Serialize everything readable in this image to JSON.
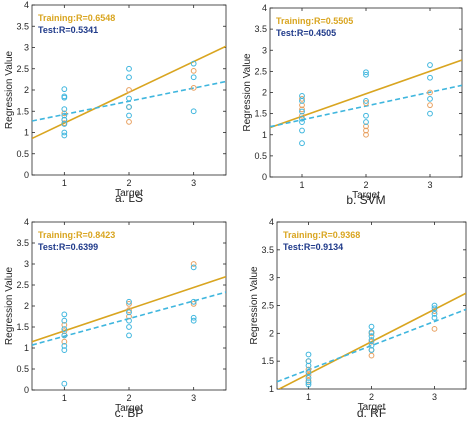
{
  "colors": {
    "training": "#D9A520",
    "test": "#3FB6DE",
    "training_label": "#D9A520",
    "test_label": "#1F3A8A",
    "point_train": "#E8A060",
    "point_test": "#3FB6DE"
  },
  "chart_data": [
    {
      "type": "scatter",
      "caption": "a. LS",
      "xlabel": "Target",
      "ylabel": "Regression Value",
      "xlim": [
        0.5,
        3.5
      ],
      "ylim": [
        0,
        4
      ],
      "xticks": [
        "1",
        "2",
        "3"
      ],
      "yticks": [
        "0",
        "0.5",
        "1",
        "1.5",
        "2",
        "2.5",
        "3",
        "3.5",
        "4"
      ],
      "grid": false,
      "legend_position": "top-left",
      "training_label": "Training:R=0.6548",
      "test_label": "Test:R=0.5341",
      "training_line": {
        "x": [
          0.5,
          3.5
        ],
        "y": [
          0.86,
          3.03
        ]
      },
      "test_line": {
        "x": [
          0.5,
          3.5
        ],
        "y": [
          1.27,
          2.2
        ]
      },
      "points_train": [
        {
          "x": 1,
          "y": 1.45
        },
        {
          "x": 1,
          "y": 1.3
        },
        {
          "x": 1,
          "y": 1.22
        },
        {
          "x": 2,
          "y": 1.6
        },
        {
          "x": 2,
          "y": 1.25
        },
        {
          "x": 2,
          "y": 2.0
        },
        {
          "x": 3,
          "y": 2.45
        },
        {
          "x": 3,
          "y": 2.05
        }
      ],
      "points_test": [
        {
          "x": 1,
          "y": 2.02
        },
        {
          "x": 1,
          "y": 1.85
        },
        {
          "x": 1,
          "y": 1.82
        },
        {
          "x": 1,
          "y": 1.55
        },
        {
          "x": 1,
          "y": 1.4
        },
        {
          "x": 1,
          "y": 1.3
        },
        {
          "x": 1,
          "y": 1.2
        },
        {
          "x": 1,
          "y": 1.0
        },
        {
          "x": 1,
          "y": 0.93
        },
        {
          "x": 2,
          "y": 2.5
        },
        {
          "x": 2,
          "y": 2.3
        },
        {
          "x": 2,
          "y": 1.8
        },
        {
          "x": 2,
          "y": 1.6
        },
        {
          "x": 2,
          "y": 1.4
        },
        {
          "x": 3,
          "y": 2.62
        },
        {
          "x": 3,
          "y": 2.3
        },
        {
          "x": 3,
          "y": 1.5
        }
      ]
    },
    {
      "type": "scatter",
      "caption": "b. SVM",
      "xlabel": "Target",
      "ylabel": "Regression Value",
      "xlim": [
        0.5,
        3.5
      ],
      "ylim": [
        0,
        4
      ],
      "xticks": [
        "1",
        "2",
        "3"
      ],
      "yticks": [
        "0",
        "0.5",
        "1",
        "1.5",
        "2",
        "2.5",
        "3",
        "3.5",
        "4"
      ],
      "grid": false,
      "legend_position": "top-left",
      "training_label": "Training:R=0.5505",
      "test_label": "Test:R=0.4505",
      "training_line": {
        "x": [
          0.5,
          3.5
        ],
        "y": [
          1.17,
          2.77
        ]
      },
      "test_line": {
        "x": [
          0.5,
          3.5
        ],
        "y": [
          1.19,
          2.17
        ]
      },
      "points_train": [
        {
          "x": 1,
          "y": 1.85
        },
        {
          "x": 1,
          "y": 1.7
        },
        {
          "x": 1,
          "y": 1.6
        },
        {
          "x": 1,
          "y": 1.45
        },
        {
          "x": 2,
          "y": 1.75
        },
        {
          "x": 2,
          "y": 1.2
        },
        {
          "x": 2,
          "y": 1.1
        },
        {
          "x": 2,
          "y": 1.0
        },
        {
          "x": 3,
          "y": 2.0
        },
        {
          "x": 3,
          "y": 1.7
        }
      ],
      "points_test": [
        {
          "x": 1,
          "y": 1.92
        },
        {
          "x": 1,
          "y": 1.8
        },
        {
          "x": 1,
          "y": 1.55
        },
        {
          "x": 1,
          "y": 1.38
        },
        {
          "x": 1,
          "y": 1.3
        },
        {
          "x": 1,
          "y": 1.1
        },
        {
          "x": 1,
          "y": 0.8
        },
        {
          "x": 2,
          "y": 2.48
        },
        {
          "x": 2,
          "y": 2.42
        },
        {
          "x": 2,
          "y": 1.8
        },
        {
          "x": 2,
          "y": 1.45
        },
        {
          "x": 2,
          "y": 1.3
        },
        {
          "x": 3,
          "y": 2.65
        },
        {
          "x": 3,
          "y": 2.35
        },
        {
          "x": 3,
          "y": 1.85
        },
        {
          "x": 3,
          "y": 1.5
        }
      ]
    },
    {
      "type": "scatter",
      "caption": "c. BP",
      "xlabel": "Target",
      "ylabel": "Regression Value",
      "xlim": [
        0.5,
        3.5
      ],
      "ylim": [
        0,
        4
      ],
      "xticks": [
        "1",
        "2",
        "3"
      ],
      "yticks": [
        "0",
        "0.5",
        "1",
        "1.5",
        "2",
        "2.5",
        "3",
        "3.5",
        "4"
      ],
      "grid": false,
      "legend_position": "top-left",
      "training_label": "Training:R=0.8423",
      "test_label": "Test:R=0.6399",
      "training_line": {
        "x": [
          0.5,
          3.5
        ],
        "y": [
          1.15,
          2.7
        ]
      },
      "test_line": {
        "x": [
          0.5,
          3.5
        ],
        "y": [
          1.07,
          2.33
        ]
      },
      "points_train": [
        {
          "x": 1,
          "y": 1.55
        },
        {
          "x": 1,
          "y": 1.4
        },
        {
          "x": 1,
          "y": 1.3
        },
        {
          "x": 1,
          "y": 1.15
        },
        {
          "x": 2,
          "y": 2.05
        },
        {
          "x": 2,
          "y": 1.9
        },
        {
          "x": 2,
          "y": 1.75
        },
        {
          "x": 3,
          "y": 3.0
        },
        {
          "x": 3,
          "y": 2.05
        }
      ],
      "points_test": [
        {
          "x": 1,
          "y": 1.8
        },
        {
          "x": 1,
          "y": 1.65
        },
        {
          "x": 1,
          "y": 1.45
        },
        {
          "x": 1,
          "y": 1.3
        },
        {
          "x": 1,
          "y": 1.05
        },
        {
          "x": 1,
          "y": 0.95
        },
        {
          "x": 1,
          "y": 0.15
        },
        {
          "x": 2,
          "y": 2.1
        },
        {
          "x": 2,
          "y": 1.85
        },
        {
          "x": 2,
          "y": 1.65
        },
        {
          "x": 2,
          "y": 1.5
        },
        {
          "x": 2,
          "y": 1.3
        },
        {
          "x": 3,
          "y": 2.92
        },
        {
          "x": 3,
          "y": 2.1
        },
        {
          "x": 3,
          "y": 1.72
        },
        {
          "x": 3,
          "y": 1.65
        }
      ]
    },
    {
      "type": "scatter",
      "caption": "d. RF",
      "xlabel": "Target",
      "ylabel": "Regression Value",
      "xlim": [
        0.5,
        3.5
      ],
      "ylim": [
        1,
        4
      ],
      "xticks": [
        "1",
        "2",
        "3"
      ],
      "yticks": [
        "1",
        "1.5",
        "2",
        "2.5",
        "3",
        "3.5",
        "4"
      ],
      "grid": false,
      "legend_position": "top-left",
      "training_label": "Training:R=0.9368",
      "test_label": "Test:R=0.9134",
      "training_line": {
        "x": [
          0.5,
          3.5
        ],
        "y": [
          0.98,
          2.72
        ]
      },
      "test_line": {
        "x": [
          0.5,
          3.5
        ],
        "y": [
          1.13,
          2.43
        ]
      },
      "points_train": [
        {
          "x": 1,
          "y": 1.5
        },
        {
          "x": 1,
          "y": 1.35
        },
        {
          "x": 1,
          "y": 1.25
        },
        {
          "x": 1,
          "y": 1.15
        },
        {
          "x": 2,
          "y": 2.0
        },
        {
          "x": 2,
          "y": 1.85
        },
        {
          "x": 2,
          "y": 1.7
        },
        {
          "x": 2,
          "y": 1.6
        },
        {
          "x": 3,
          "y": 2.4
        },
        {
          "x": 3,
          "y": 2.08
        }
      ],
      "points_test": [
        {
          "x": 1,
          "y": 1.62
        },
        {
          "x": 1,
          "y": 1.5
        },
        {
          "x": 1,
          "y": 1.42
        },
        {
          "x": 1,
          "y": 1.3
        },
        {
          "x": 1,
          "y": 1.2
        },
        {
          "x": 1,
          "y": 1.12
        },
        {
          "x": 1,
          "y": 1.08
        },
        {
          "x": 2,
          "y": 2.12
        },
        {
          "x": 2,
          "y": 2.02
        },
        {
          "x": 2,
          "y": 1.95
        },
        {
          "x": 2,
          "y": 1.88
        },
        {
          "x": 2,
          "y": 1.78
        },
        {
          "x": 2,
          "y": 1.7
        },
        {
          "x": 3,
          "y": 2.5
        },
        {
          "x": 3,
          "y": 2.45
        },
        {
          "x": 3,
          "y": 2.35
        },
        {
          "x": 3,
          "y": 2.28
        }
      ]
    }
  ]
}
